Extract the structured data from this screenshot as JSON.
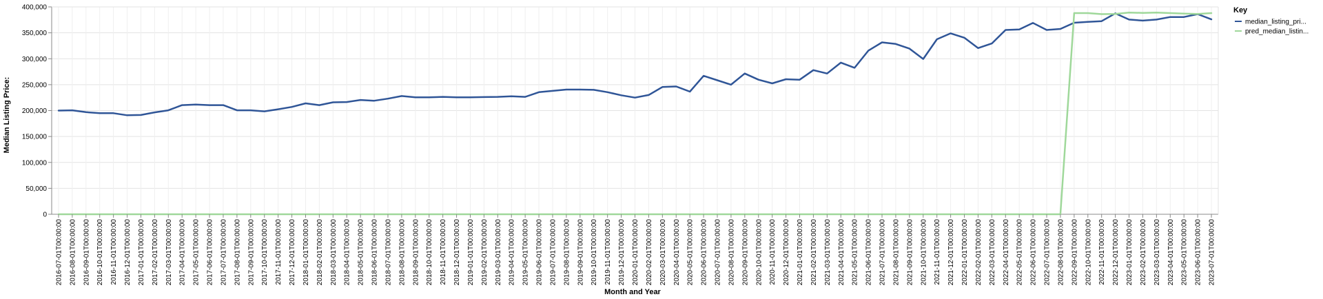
{
  "chart_data": {
    "type": "line",
    "xlabel": "Month and Year",
    "ylabel": "Median Listing Price:",
    "ylim": [
      0,
      400000
    ],
    "yticks": [
      0,
      50000,
      100000,
      150000,
      200000,
      250000,
      300000,
      350000,
      400000
    ],
    "ytick_labels": [
      "0",
      "50,000",
      "100,000",
      "150,000",
      "200,000",
      "250,000",
      "300,000",
      "350,000",
      "400,000"
    ],
    "grid": true,
    "legend": {
      "title": "Key",
      "placement": "right",
      "entries": [
        "median_listing_pri...",
        "pred_median_listin..."
      ]
    },
    "x": [
      "2016-07-01T00:00:00",
      "2016-08-01T00:00:00",
      "2016-09-01T00:00:00",
      "2016-10-01T00:00:00",
      "2016-11-01T00:00:00",
      "2016-12-01T00:00:00",
      "2017-01-01T00:00:00",
      "2017-02-01T00:00:00",
      "2017-03-01T00:00:00",
      "2017-04-01T00:00:00",
      "2017-05-01T00:00:00",
      "2017-06-01T00:00:00",
      "2017-07-01T00:00:00",
      "2017-08-01T00:00:00",
      "2017-09-01T00:00:00",
      "2017-10-01T00:00:00",
      "2017-11-01T00:00:00",
      "2017-12-01T00:00:00",
      "2018-01-01T00:00:00",
      "2018-02-01T00:00:00",
      "2018-03-01T00:00:00",
      "2018-04-01T00:00:00",
      "2018-05-01T00:00:00",
      "2018-06-01T00:00:00",
      "2018-07-01T00:00:00",
      "2018-08-01T00:00:00",
      "2018-09-01T00:00:00",
      "2018-10-01T00:00:00",
      "2018-11-01T00:00:00",
      "2018-12-01T00:00:00",
      "2019-01-01T00:00:00",
      "2019-02-01T00:00:00",
      "2019-03-01T00:00:00",
      "2019-04-01T00:00:00",
      "2019-05-01T00:00:00",
      "2019-06-01T00:00:00",
      "2019-07-01T00:00:00",
      "2019-08-01T00:00:00",
      "2019-09-01T00:00:00",
      "2019-10-01T00:00:00",
      "2019-11-01T00:00:00",
      "2019-12-01T00:00:00",
      "2020-01-01T00:00:00",
      "2020-02-01T00:00:00",
      "2020-03-01T00:00:00",
      "2020-04-01T00:00:00",
      "2020-05-01T00:00:00",
      "2020-06-01T00:00:00",
      "2020-07-01T00:00:00",
      "2020-08-01T00:00:00",
      "2020-09-01T00:00:00",
      "2020-10-01T00:00:00",
      "2020-11-01T00:00:00",
      "2020-12-01T00:00:00",
      "2021-01-01T00:00:00",
      "2021-02-01T00:00:00",
      "2021-03-01T00:00:00",
      "2021-04-01T00:00:00",
      "2021-05-01T00:00:00",
      "2021-06-01T00:00:00",
      "2021-07-01T00:00:00",
      "2021-08-01T00:00:00",
      "2021-09-01T00:00:00",
      "2021-10-01T00:00:00",
      "2021-11-01T00:00:00",
      "2021-12-01T00:00:00",
      "2022-01-01T00:00:00",
      "2022-02-01T00:00:00",
      "2022-03-01T00:00:00",
      "2022-04-01T00:00:00",
      "2022-05-01T00:00:00",
      "2022-06-01T00:00:00",
      "2022-07-01T00:00:00",
      "2022-08-01T00:00:00",
      "2022-09-01T00:00:00",
      "2022-10-01T00:00:00",
      "2022-11-01T00:00:00",
      "2022-12-01T00:00:00",
      "2023-01-01T00:00:00",
      "2023-02-01T00:00:00",
      "2023-03-01T00:00:00",
      "2023-04-01T00:00:00",
      "2023-05-01T00:00:00",
      "2023-06-01T00:00:00",
      "2023-07-01T00:00:00"
    ],
    "series": [
      {
        "name": "median_listing_pri...",
        "color": "#2f5597",
        "values": [
          200000,
          200500,
          197000,
          195000,
          195000,
          191000,
          191500,
          196500,
          200500,
          210500,
          211500,
          210500,
          210500,
          200500,
          200500,
          198500,
          202500,
          207000,
          214000,
          210500,
          216000,
          216500,
          220500,
          219000,
          223000,
          228000,
          225500,
          225500,
          226500,
          225500,
          225500,
          226000,
          226500,
          227500,
          226500,
          235500,
          238000,
          240500,
          240500,
          240000,
          235500,
          229500,
          225000,
          230000,
          245500,
          246500,
          236500,
          267000,
          258500,
          250000,
          271500,
          259500,
          252500,
          260500,
          259500,
          278000,
          271500,
          292500,
          282500,
          315500,
          331500,
          328500,
          319500,
          299500,
          337500,
          349000,
          340500,
          320500,
          329500,
          355500,
          356500,
          369000,
          355500,
          357500,
          369500,
          371000,
          372500,
          387500,
          375500,
          373500,
          375500,
          380500,
          380500,
          386000,
          376000
        ]
      },
      {
        "name": "pred_median_listin...",
        "color": "#9fd89a",
        "values": [
          0,
          0,
          0,
          0,
          0,
          0,
          0,
          0,
          0,
          0,
          0,
          0,
          0,
          0,
          0,
          0,
          0,
          0,
          0,
          0,
          0,
          0,
          0,
          0,
          0,
          0,
          0,
          0,
          0,
          0,
          0,
          0,
          0,
          0,
          0,
          0,
          0,
          0,
          0,
          0,
          0,
          0,
          0,
          0,
          0,
          0,
          0,
          0,
          0,
          0,
          0,
          0,
          0,
          0,
          0,
          0,
          0,
          0,
          0,
          0,
          0,
          0,
          0,
          0,
          0,
          0,
          0,
          0,
          0,
          0,
          0,
          0,
          0,
          0,
          388000,
          388000,
          386000,
          386500,
          389000,
          388500,
          389000,
          388000,
          387000,
          386500,
          388000
        ]
      }
    ]
  }
}
